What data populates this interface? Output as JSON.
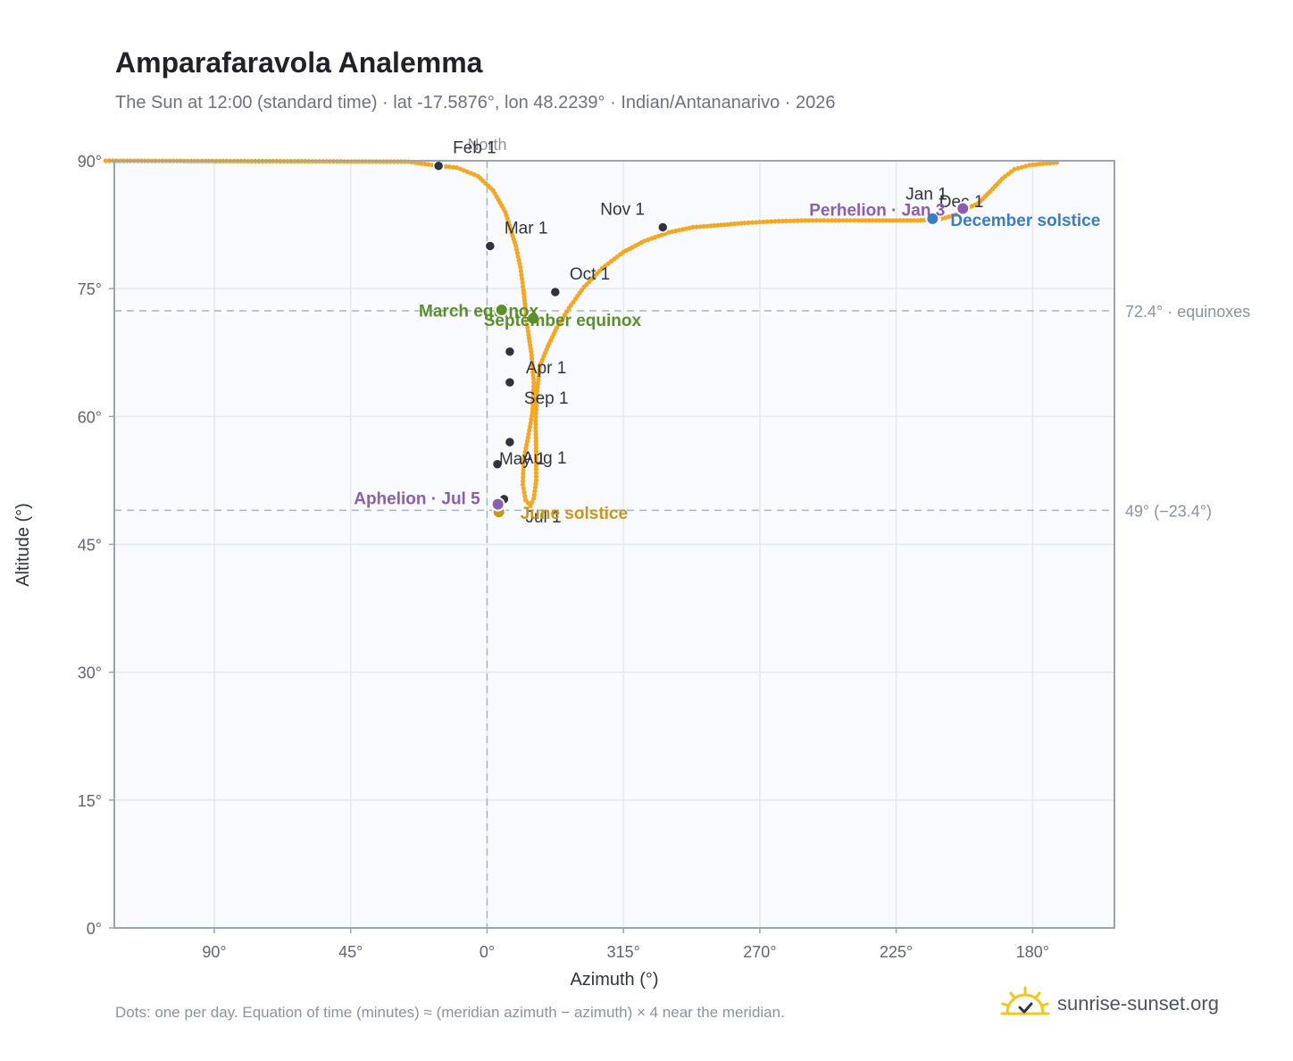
{
  "header": {
    "title": "Amparafaravola Analemma",
    "subtitle": "The Sun at 12:00 (standard time) · lat -17.5876°, lon 48.2239° · Indian/Antananarivo · 2026"
  },
  "footer": {
    "note": "Dots: one per day. Equation of time (minutes) ≈ (meridian azimuth − azimuth) × 4 near the meridian.",
    "brand": "sunrise-sunset.org",
    "brand_icon": "sun-check-icon"
  },
  "colors": {
    "curve": "#f5a623",
    "month_dot": "#2d3340",
    "equinox": "#5a8f2e",
    "solstice_june": "#c9971c",
    "solstice_december": "#3a7dc9",
    "apsis": "#8a5fb0",
    "plot_bg": "#f8fafd",
    "grid": "#e3e8ee",
    "frame": "#9aa5b4"
  },
  "chart_data": {
    "type": "scatter",
    "title": "Amparafaravola Analemma",
    "xlabel": "Azimuth (°)",
    "ylabel": "Altitude (°)",
    "x_axis_note": "azimuth axis centered on north (0°); values increase to the left from 0° through 315°, 270°, 225°, 180°",
    "x_ticks": [
      "180°",
      "225°",
      "270°",
      "315°",
      "0°",
      "45°",
      "90°"
    ],
    "x_tick_values": [
      180,
      225,
      270,
      315,
      360,
      405,
      450
    ],
    "xlim": [
      153,
      483
    ],
    "y_ticks": [
      "0°",
      "15°",
      "30°",
      "45°",
      "60°",
      "75°",
      "90°"
    ],
    "y_tick_values": [
      0,
      15,
      30,
      45,
      60,
      75,
      90
    ],
    "ylim": [
      0,
      90
    ],
    "grid": true,
    "north_label": "North",
    "north_azimuth": 360,
    "reference_lines": [
      {
        "altitude": 72.4,
        "label": "72.4° · equinoxes"
      },
      {
        "altitude": 49,
        "label": "49° (−23.4°)"
      }
    ],
    "analemma_path": [
      [
        172,
        89.8
      ],
      [
        181,
        89.5
      ],
      [
        186,
        89.0
      ],
      [
        190,
        87.9
      ],
      [
        194,
        86.4
      ],
      [
        198,
        85.0
      ],
      [
        201,
        84.5
      ],
      [
        204,
        83.8
      ],
      [
        210,
        83.2
      ],
      [
        218,
        83.0
      ],
      [
        226,
        83.0
      ],
      [
        235,
        83.0
      ],
      [
        245,
        83.0
      ],
      [
        255,
        83.0
      ],
      [
        265,
        82.9
      ],
      [
        275,
        82.7
      ],
      [
        285,
        82.4
      ],
      [
        292,
        82.2
      ],
      [
        300,
        81.6
      ],
      [
        308,
        80.6
      ],
      [
        315,
        79.3
      ],
      [
        322,
        77.4
      ],
      [
        328,
        75.2
      ],
      [
        333,
        72.7
      ],
      [
        337,
        70.4
      ],
      [
        340,
        68.2
      ],
      [
        342.6,
        65.9
      ],
      [
        343.5,
        63.0
      ],
      [
        344,
        59.5
      ],
      [
        343.8,
        55.5
      ],
      [
        343.8,
        52.5
      ],
      [
        344.6,
        50.4
      ],
      [
        345.7,
        49.5
      ],
      [
        347.3,
        50.2
      ],
      [
        348.2,
        52.0
      ],
      [
        347.9,
        55.0
      ],
      [
        346.5,
        57.5
      ],
      [
        345,
        60.5
      ],
      [
        344.6,
        64.0
      ],
      [
        345.3,
        67.2
      ],
      [
        346.5,
        70.0
      ],
      [
        347.3,
        72.5
      ],
      [
        348.0,
        74.8
      ],
      [
        349.0,
        77.5
      ],
      [
        350.5,
        80.0
      ],
      [
        354,
        84.0
      ],
      [
        358,
        86.5
      ],
      [
        363,
        88.2
      ],
      [
        370,
        89.2
      ],
      [
        376,
        89.4
      ],
      [
        386,
        89.9
      ],
      [
        487,
        90.0
      ]
    ],
    "month_markers": [
      {
        "label": "Jan 1",
        "azimuth": 203,
        "altitude": 84.2
      },
      {
        "label": "Feb 1",
        "azimuth": 376,
        "altitude": 89.4
      },
      {
        "label": "Mar 1",
        "azimuth": 359,
        "altitude": 80.0
      },
      {
        "label": "Apr 1",
        "azimuth": 352.5,
        "altitude": 67.6
      },
      {
        "label": "May 1",
        "azimuth": 356.6,
        "altitude": 54.4
      },
      {
        "label": "Jul 1",
        "azimuth": 354.4,
        "altitude": 50.3
      },
      {
        "label": "Aug 1",
        "azimuth": 352.5,
        "altitude": 57.0
      },
      {
        "label": "Sep 1",
        "azimuth": 352.5,
        "altitude": 64.0
      },
      {
        "label": "Oct 1",
        "azimuth": 337.5,
        "altitude": 74.6
      },
      {
        "label": "Nov 1",
        "azimuth": 302,
        "altitude": 82.2
      },
      {
        "label": "Dec 1",
        "azimuth": 212,
        "altitude": 83.3
      }
    ],
    "events": [
      {
        "label": "March equinox",
        "azimuth": 344.8,
        "altitude": 71.5,
        "kind": "equinox"
      },
      {
        "label": "September equinox",
        "azimuth": 355.2,
        "altitude": 72.5,
        "kind": "equinox"
      },
      {
        "label": "June solstice",
        "azimuth": 356.1,
        "altitude": 48.8,
        "kind": "solstice_june"
      },
      {
        "label": "December solstice",
        "azimuth": 213.0,
        "altitude": 83.2,
        "kind": "solstice_december"
      },
      {
        "label": "Perhelion · Jan 3",
        "azimuth": 203.0,
        "altitude": 84.4,
        "kind": "apsis"
      },
      {
        "label": "Aphelion · Jul 5",
        "azimuth": 356.4,
        "altitude": 49.7,
        "kind": "apsis"
      }
    ]
  }
}
